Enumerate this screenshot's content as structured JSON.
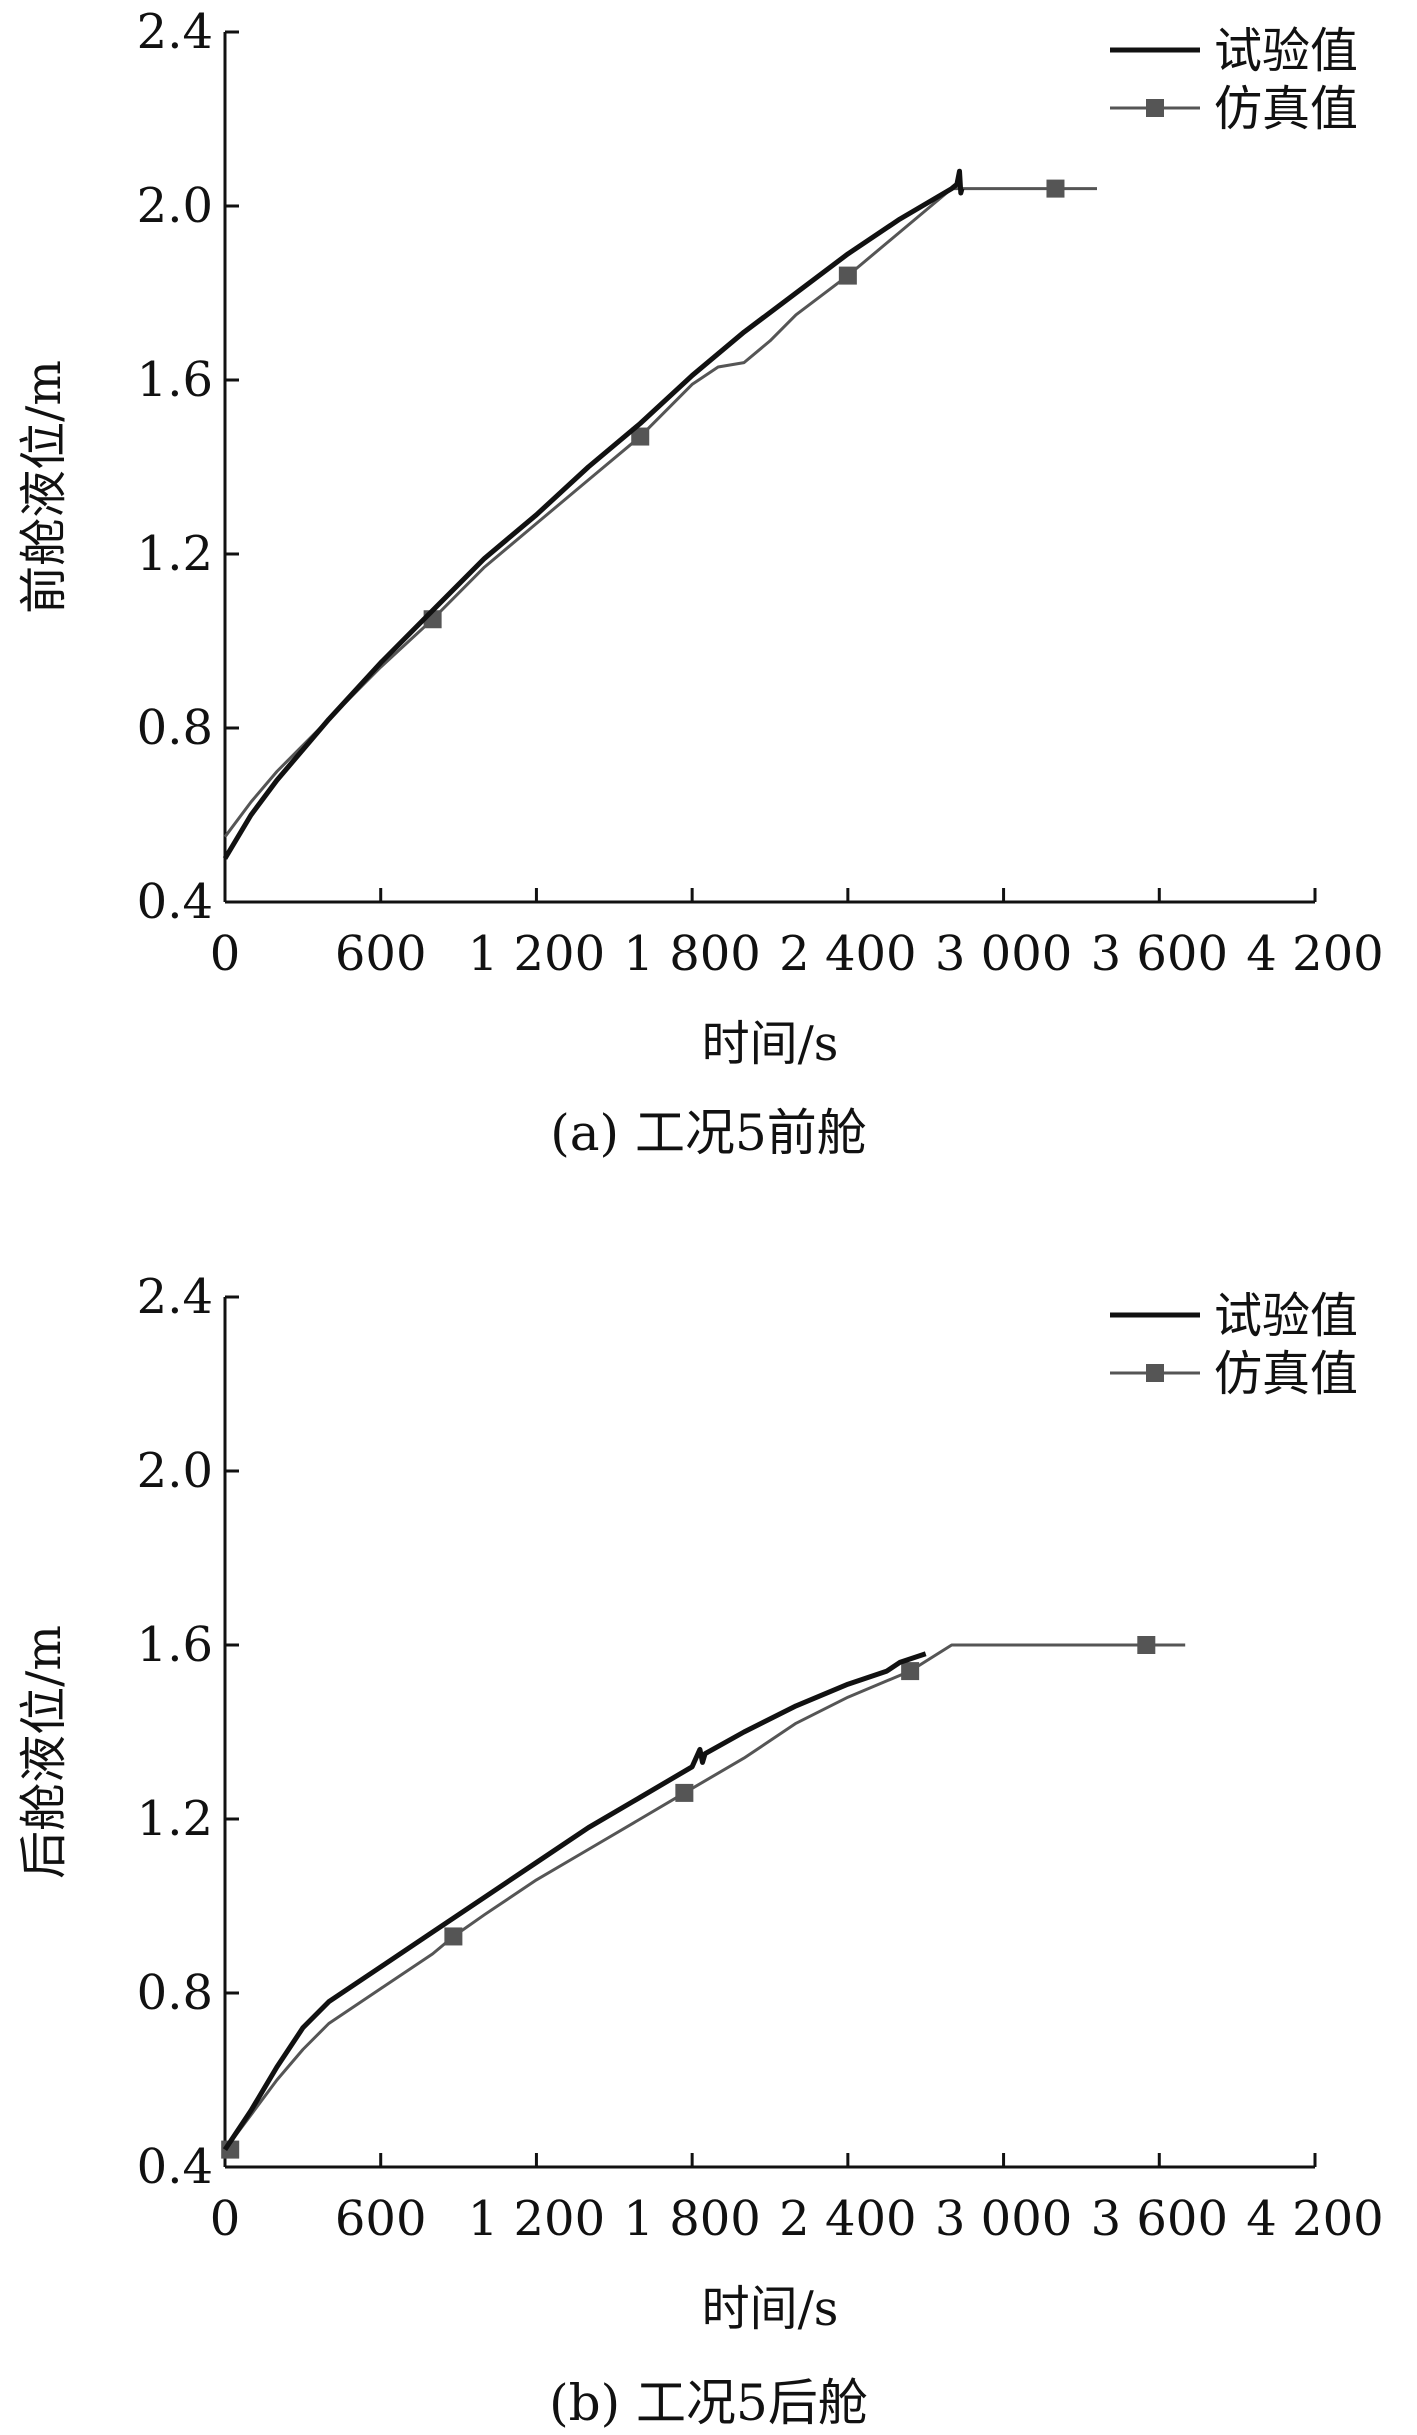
{
  "chart_data": [
    {
      "type": "line",
      "caption": "(a) 工况5前舱",
      "xlabel": "时间/s",
      "ylabel": "前舱液位/m",
      "xlim": [
        0,
        4200
      ],
      "ylim": [
        0.4,
        2.4
      ],
      "xticks": [
        0,
        600,
        1200,
        1800,
        2400,
        3000,
        3600,
        4200
      ],
      "xtick_labels": [
        "0",
        "600",
        "1 200",
        "1 800",
        "2 400",
        "3 000",
        "3 600",
        "4 200"
      ],
      "yticks": [
        0.4,
        0.8,
        1.2,
        1.6,
        2.0,
        2.4
      ],
      "ytick_labels": [
        "0.4",
        "0.8",
        "1.2",
        "1.6",
        "2.0",
        "2.4"
      ],
      "grid": false,
      "legend_position": "top-right",
      "series": [
        {
          "name": "试验值",
          "style": "thick",
          "x": [
            0,
            100,
            200,
            400,
            600,
            800,
            1000,
            1200,
            1400,
            1600,
            1800,
            2000,
            2200,
            2400,
            2600,
            2800,
            2820,
            2830,
            2835,
            2840
          ],
          "y": [
            0.5,
            0.6,
            0.68,
            0.82,
            0.95,
            1.07,
            1.19,
            1.29,
            1.4,
            1.5,
            1.61,
            1.71,
            1.8,
            1.89,
            1.97,
            2.04,
            2.05,
            2.08,
            2.03,
            2.04
          ]
        },
        {
          "name": "仿真值",
          "style": "thin-square-markers",
          "x": [
            0,
            100,
            200,
            400,
            600,
            800,
            1000,
            1200,
            1400,
            1600,
            1800,
            1900,
            2000,
            2100,
            2200,
            2400,
            2600,
            2800,
            3000,
            3200,
            3360
          ],
          "y": [
            0.55,
            0.63,
            0.7,
            0.82,
            0.94,
            1.05,
            1.17,
            1.27,
            1.37,
            1.47,
            1.59,
            1.63,
            1.64,
            1.69,
            1.75,
            1.84,
            1.94,
            2.04,
            2.04,
            2.04,
            2.04
          ],
          "marker_x": [
            800,
            1600,
            2400,
            3200
          ],
          "marker_y": [
            1.05,
            1.47,
            1.84,
            2.04
          ]
        }
      ]
    },
    {
      "type": "line",
      "caption": "(b) 工况5后舱",
      "xlabel": "时间/s",
      "ylabel": "后舱液位/m",
      "xlim": [
        0,
        4200
      ],
      "ylim": [
        0.4,
        2.4
      ],
      "xticks": [
        0,
        600,
        1200,
        1800,
        2400,
        3000,
        3600,
        4200
      ],
      "xtick_labels": [
        "0",
        "600",
        "1 200",
        "1 800",
        "2 400",
        "3 000",
        "3 600",
        "4 200"
      ],
      "yticks": [
        0.4,
        0.8,
        1.2,
        1.6,
        2.0,
        2.4
      ],
      "ytick_labels": [
        "0.4",
        "0.8",
        "1.2",
        "1.6",
        "2.0",
        "2.4"
      ],
      "grid": false,
      "legend_position": "top-right",
      "series": [
        {
          "name": "试验值",
          "style": "thick",
          "x": [
            0,
            100,
            200,
            300,
            400,
            600,
            800,
            1000,
            1200,
            1400,
            1600,
            1800,
            1830,
            1840,
            1850,
            2000,
            2200,
            2400,
            2550,
            2600,
            2700
          ],
          "y": [
            0.44,
            0.53,
            0.63,
            0.72,
            0.78,
            0.86,
            0.94,
            1.02,
            1.1,
            1.18,
            1.25,
            1.32,
            1.36,
            1.33,
            1.35,
            1.4,
            1.46,
            1.51,
            1.54,
            1.56,
            1.58
          ]
        },
        {
          "name": "仿真值",
          "style": "thin-square-markers",
          "x": [
            0,
            100,
            200,
            300,
            400,
            600,
            800,
            880,
            1000,
            1200,
            1400,
            1600,
            1770,
            2000,
            2200,
            2400,
            2640,
            2800,
            3000,
            3200,
            3400,
            3550,
            3700
          ],
          "y": [
            0.44,
            0.52,
            0.6,
            0.67,
            0.73,
            0.81,
            0.89,
            0.93,
            0.98,
            1.06,
            1.13,
            1.2,
            1.26,
            1.34,
            1.42,
            1.48,
            1.54,
            1.6,
            1.6,
            1.6,
            1.6,
            1.6,
            1.6
          ],
          "marker_x": [
            20,
            880,
            1770,
            2640,
            3550
          ],
          "marker_y": [
            0.44,
            0.93,
            1.26,
            1.54,
            1.6
          ]
        }
      ]
    }
  ]
}
